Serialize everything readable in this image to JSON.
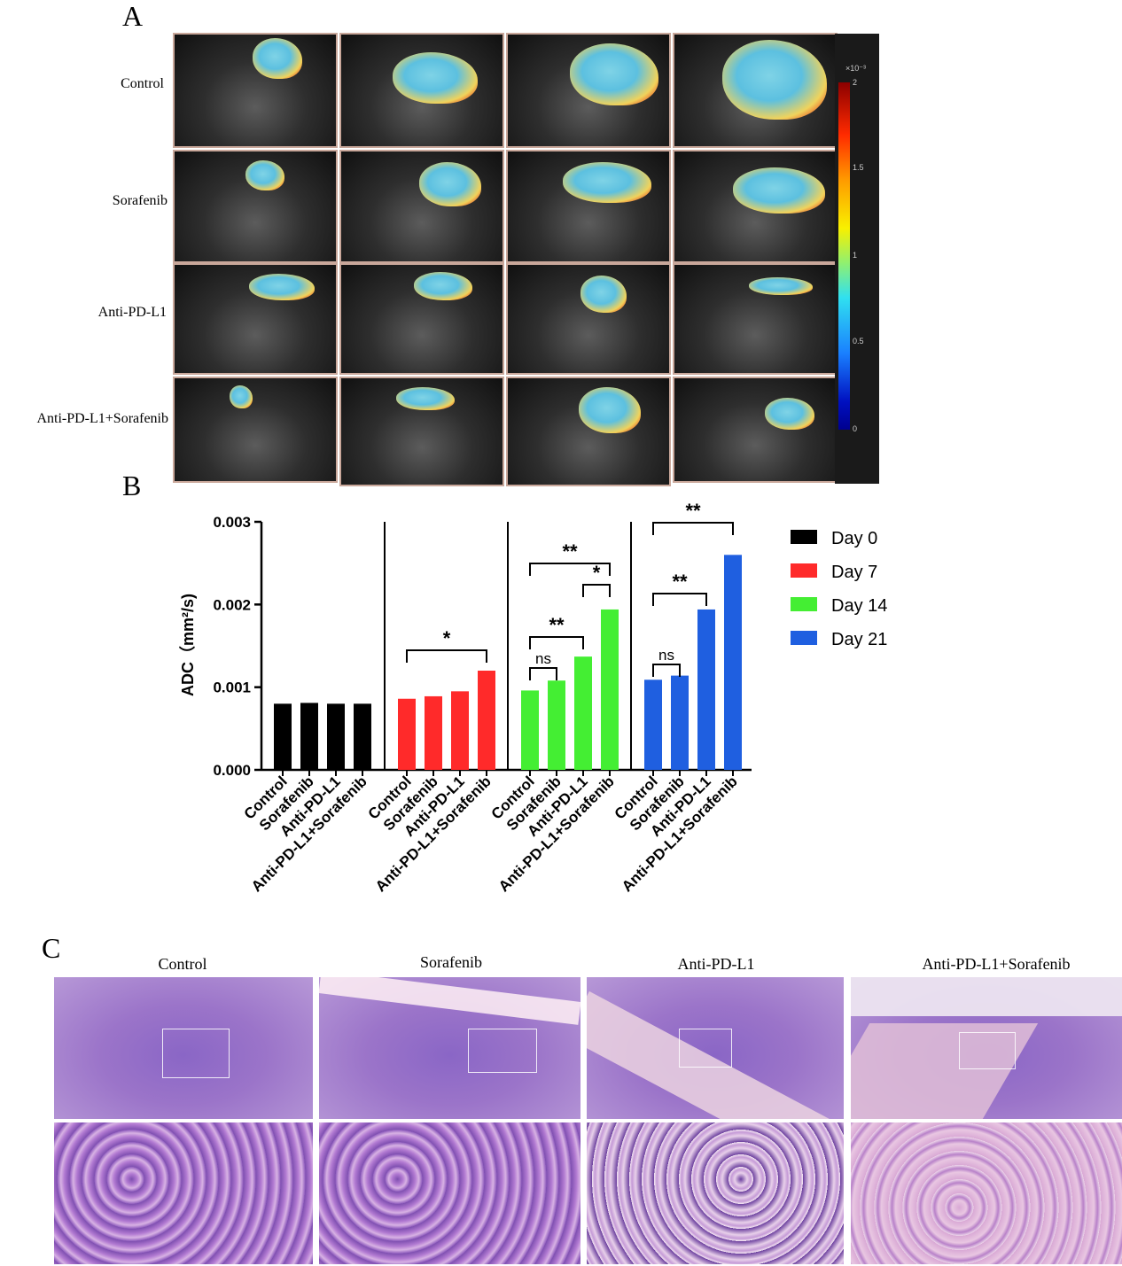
{
  "panel_a": {
    "letter": "A",
    "rows": [
      "Control",
      "Sorafenib",
      "Anti-PD-L1",
      "Anti-PD-L1+Sorafenib"
    ],
    "colorbar": {
      "exponent": "×10⁻³",
      "ticks": [
        "2",
        "1.5",
        "1",
        "0.5",
        "0"
      ]
    }
  },
  "panel_b": {
    "letter": "B"
  },
  "panel_c": {
    "letter": "C",
    "titles": [
      "Control",
      "Sorafenib",
      "Anti-PD-L1",
      "Anti-PD-L1+Sorafenib"
    ]
  },
  "chart_data": {
    "type": "bar",
    "ylabel": "ADC（mm²/s)",
    "ylim": [
      0,
      0.003
    ],
    "yticks": [
      "0.000",
      "0.001",
      "0.002",
      "0.003"
    ],
    "categories": [
      "Control",
      "Sorafenib",
      "Anti-PD-L1",
      "Anti-PD-L1+Sorafenib"
    ],
    "series": [
      {
        "name": "Day 0",
        "color": "#000000",
        "values": [
          0.0008,
          0.00081,
          0.0008,
          0.0008
        ]
      },
      {
        "name": "Day 7",
        "color": "#ff2a2a",
        "values": [
          0.00086,
          0.00089,
          0.00095,
          0.0012
        ]
      },
      {
        "name": "Day 14",
        "color": "#44ee33",
        "values": [
          0.00096,
          0.00108,
          0.00137,
          0.00194
        ]
      },
      {
        "name": "Day 21",
        "color": "#1f5fe0",
        "values": [
          0.00109,
          0.00114,
          0.00194,
          0.0026
        ]
      }
    ],
    "legend_position": "right",
    "annotations": [
      {
        "group": 1,
        "from": 0,
        "to": 3,
        "label": "*"
      },
      {
        "group": 2,
        "from": 0,
        "to": 1,
        "label": "ns"
      },
      {
        "group": 2,
        "from": 0,
        "to": 2,
        "label": "**"
      },
      {
        "group": 2,
        "from": 2,
        "to": 3,
        "label": "*"
      },
      {
        "group": 2,
        "from": 0,
        "to": 3,
        "label": "**"
      },
      {
        "group": 3,
        "from": 0,
        "to": 1,
        "label": "ns"
      },
      {
        "group": 3,
        "from": 0,
        "to": 2,
        "label": "**"
      },
      {
        "group": 3,
        "from": 0,
        "to": 3,
        "label": "**"
      }
    ]
  }
}
